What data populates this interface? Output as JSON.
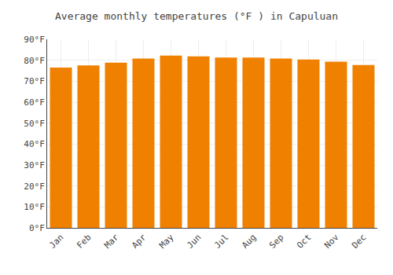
{
  "chart_data": {
    "type": "bar",
    "title": "Average monthly temperatures (°F ) in Capuluan",
    "categories": [
      "Jan",
      "Feb",
      "Mar",
      "Apr",
      "May",
      "Jun",
      "Jul",
      "Aug",
      "Sep",
      "Oct",
      "Nov",
      "Dec"
    ],
    "values": [
      76.5,
      77.5,
      78.8,
      80.8,
      82.2,
      81.8,
      81.3,
      81.3,
      80.8,
      80.3,
      79.3,
      77.7
    ],
    "color": "#F08000",
    "ylim": [
      0,
      90
    ],
    "yticks": [
      {
        "value": 0,
        "label": "0°F"
      },
      {
        "value": 10,
        "label": "10°F"
      },
      {
        "value": 20,
        "label": "20°F"
      },
      {
        "value": 30,
        "label": "30°F"
      },
      {
        "value": 40,
        "label": "40°F"
      },
      {
        "value": 50,
        "label": "50°F"
      },
      {
        "value": 60,
        "label": "60°F"
      },
      {
        "value": 70,
        "label": "70°F"
      },
      {
        "value": 80,
        "label": "80°F"
      },
      {
        "value": 90,
        "label": "90°F"
      }
    ],
    "grid": true
  }
}
